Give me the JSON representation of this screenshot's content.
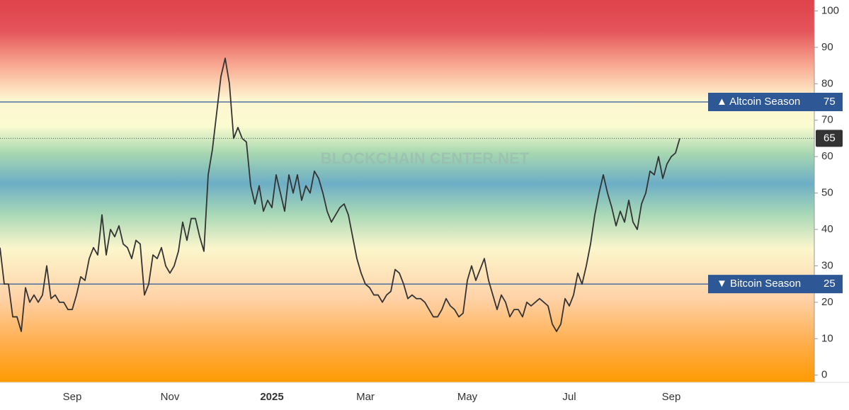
{
  "chart_data": {
    "type": "line",
    "watermark": "BLOCKCHAIN CENTER.NET",
    "categories": [
      null,
      null,
      null,
      null,
      null,
      null,
      null,
      null,
      null,
      null,
      null,
      null,
      null,
      null,
      null,
      null,
      null,
      "Sep",
      null,
      null,
      null,
      null,
      null,
      null,
      null,
      null,
      null,
      null,
      null,
      null,
      null,
      null,
      null,
      null,
      null,
      null,
      null,
      null,
      null,
      null,
      "Nov",
      null,
      null,
      null,
      null,
      null,
      null,
      null,
      null,
      null,
      null,
      null,
      null,
      null,
      null,
      null,
      null,
      null,
      null,
      null,
      null,
      null,
      null,
      null,
      "2025",
      null,
      null,
      null,
      null,
      null,
      null,
      null,
      null,
      null,
      null,
      null,
      null,
      null,
      null,
      null,
      null,
      null,
      null,
      null,
      null,
      null,
      "Mar",
      null,
      null,
      null,
      null,
      null,
      null,
      null,
      null,
      null,
      null,
      null,
      null,
      null,
      null,
      null,
      null,
      null,
      null,
      null,
      null,
      null,
      null,
      null,
      "May",
      null,
      null,
      null,
      null,
      null,
      null,
      null,
      null,
      null,
      null,
      null,
      null,
      null,
      null,
      null,
      null,
      null,
      null,
      null,
      null,
      null,
      null,
      null,
      "Jul",
      null,
      null,
      null,
      null,
      null,
      null,
      null,
      null,
      null,
      null,
      null,
      null,
      null,
      null,
      null,
      null,
      null,
      null,
      null,
      null,
      null,
      null,
      null,
      "Sep",
      null,
      null
    ],
    "values": [
      35,
      25,
      25,
      16,
      16,
      12,
      24,
      20,
      22,
      20,
      22,
      30,
      21,
      22,
      20,
      20,
      18,
      18,
      22,
      27,
      26,
      32,
      35,
      33,
      44,
      33,
      40,
      38,
      41,
      36,
      35,
      32,
      37,
      36,
      22,
      25,
      33,
      32,
      35,
      30,
      28,
      30,
      34,
      42,
      37,
      43,
      43,
      38,
      34,
      55,
      62,
      72,
      82,
      87,
      80,
      65,
      68,
      65,
      64,
      52,
      47,
      52,
      45,
      48,
      46,
      55,
      50,
      45,
      55,
      50,
      55,
      48,
      52,
      50,
      56,
      54,
      50,
      45,
      42,
      44,
      46,
      47,
      44,
      38,
      32,
      28,
      25,
      24,
      22,
      22,
      20,
      22,
      23,
      29,
      28,
      25,
      21,
      22,
      21,
      21,
      20,
      18,
      16,
      16,
      18,
      21,
      19,
      18,
      16,
      17,
      26,
      30,
      26,
      29,
      32,
      26,
      22,
      18,
      22,
      20,
      16,
      18,
      18,
      16,
      20,
      19,
      20,
      21,
      20,
      19,
      14,
      12,
      14,
      21,
      19,
      22,
      28,
      25,
      30,
      36,
      44,
      50,
      55,
      50,
      46,
      41,
      45,
      42,
      48,
      42,
      40,
      47,
      50,
      56,
      55,
      60,
      54,
      58,
      60,
      61,
      65
    ],
    "color": "#333333",
    "ylim": [
      -2,
      103
    ],
    "yticks": [
      0,
      10,
      20,
      30,
      40,
      50,
      60,
      70,
      80,
      90,
      100
    ],
    "reference_lines": [
      {
        "value": 75,
        "label": "▲ Altcoin Season",
        "color": "#2d5795"
      },
      {
        "value": 25,
        "label": "▼ Bitcoin Season",
        "color": "#2d5795"
      }
    ]
  }
}
